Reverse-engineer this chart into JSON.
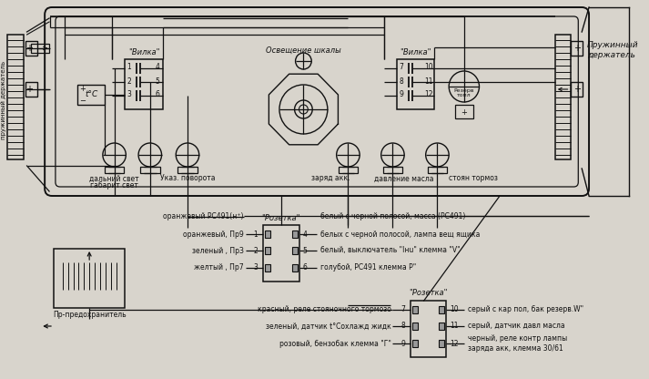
{
  "bg_color": "#d8d4cc",
  "line_color": "#111111",
  "fig_w": 7.13,
  "fig_h": 4.16,
  "dpi": 100,
  "texts": {
    "vilka1": "\"Вилка\"",
    "vilka2": "\"Вилка\"",
    "osveschenie": "Освещение шкалы",
    "pruzhinny_right": "Пружинный\nдержатель",
    "pruzhinny_left": "пружинный держатель",
    "dalny": "дальний свет",
    "gabarit": "габарит свет",
    "ukaz": "Указ. поворота",
    "zaryd": "заряд акк.",
    "stoyan": "стоян тормоз",
    "davlenie": "давление масла",
    "pr_pred": "Пр-предохранитель",
    "rozetka1": "\"Розетка\"",
    "rozetka2": "\"Розетка\"",
    "rezerv": "Резерв\nтопл",
    "tC": "t°C",
    "l1l": "оранжевый РС491(н⁺)",
    "l1r": "белый с черной полосой, масса (РС491)",
    "l2l": "оранжевый, Пр9",
    "l2r": "белых с черной полосой, лампа вещ ящика",
    "l3l": "зеленый , ПрЗ",
    "l3r": "белый, выключатель \"Ιнu\" клемма \"V\"",
    "l4l": "желтый , Пр7",
    "l4r": "голубой, РС491 клемма Р\"",
    "l5l": "красный, реле стояночного тормозо",
    "l5r": "серый с кар пол, бак резерв.W\"",
    "l6l": "зеленый, датчик t°Cохлажд жидк",
    "l6r": "серый, датчик давл масла",
    "l7l": "розовый, бензобак клемма \"Г\"",
    "l7r": "черный, реле контр лампы\nзаряда акк, клемма 30/61"
  }
}
